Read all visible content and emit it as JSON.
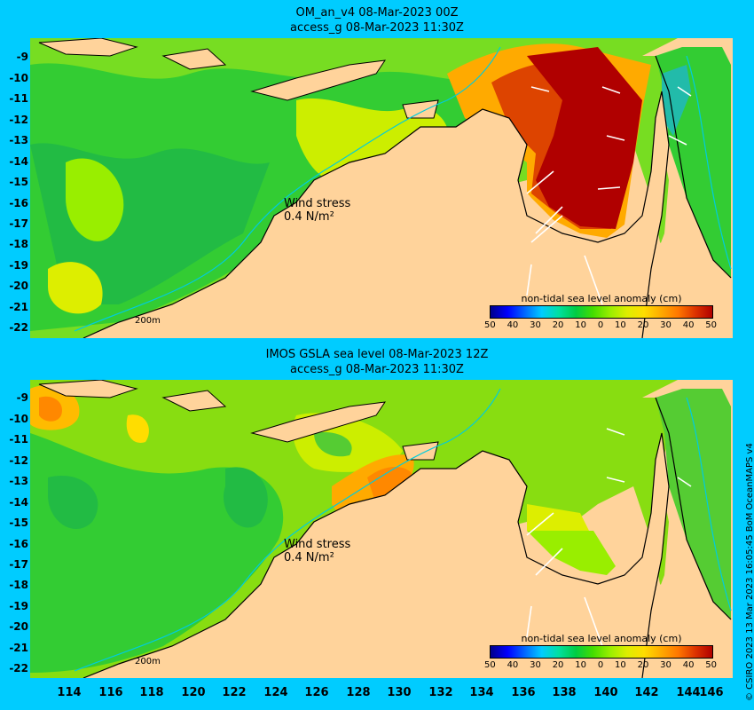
{
  "panels": [
    {
      "title_line1": "OM_an_v4  08-Mar-2023 00Z",
      "title_line2": "access_g 08-Mar-2023 11:30Z",
      "wind_label_line1": "Wind stress",
      "wind_label_line2": "0.4 N/m²",
      "isobath_label": "200m",
      "legend_title": "non-tidal sea level anomaly (cm)"
    },
    {
      "title_line1": "IMOS GSLA sea level  08-Mar-2023 12Z",
      "title_line2": "access_g 08-Mar-2023 11:30Z",
      "wind_label_line1": "Wind stress",
      "wind_label_line2": "0.4 N/m²",
      "isobath_label": "200m",
      "legend_title": "non-tidal sea level anomaly (cm)"
    }
  ],
  "legend_ticks": [
    "50",
    "40",
    "30",
    "20",
    "10",
    "0",
    "10",
    "20",
    "30",
    "40",
    "50"
  ],
  "y_ticks": [
    "-9",
    "-10",
    "-11",
    "-12",
    "-13",
    "-14",
    "-15",
    "-16",
    "-17",
    "-18",
    "-19",
    "-20",
    "-21",
    "-22"
  ],
  "x_ticks": [
    "114",
    "116",
    "118",
    "120",
    "122",
    "124",
    "126",
    "128",
    "130",
    "132",
    "134",
    "136",
    "138",
    "140",
    "142",
    "144",
    "146"
  ],
  "credit": "© CSIRO 2023   13 Mar 2023 16:05:45 BoM OceanMAPS v4",
  "colors": {
    "background": "#00ccff",
    "land": "#ffd39b",
    "ocean_green": "#33cc33",
    "ocean_yellow": "#ddee00",
    "anomaly_high": "#b00000"
  }
}
